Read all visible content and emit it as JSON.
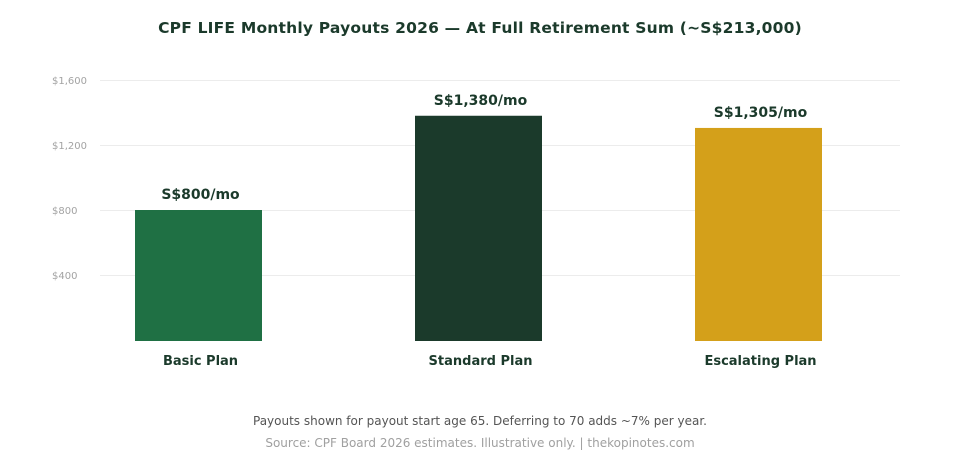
{
  "chart_data": {
    "type": "bar",
    "title": "CPF LIFE Monthly Payouts 2026 — At Full Retirement Sum (~S$213,000)",
    "categories": [
      "Basic Plan",
      "Standard Plan",
      "Escalating Plan"
    ],
    "values": [
      800,
      1380,
      1305
    ],
    "data_labels": [
      "S$800/mo",
      "S$1,380/mo",
      "S$1,305/mo"
    ],
    "colors": [
      "#1f7044",
      "#1b3a2b",
      "#d4a01a"
    ],
    "ylim": [
      0,
      1600
    ],
    "yticks": [
      400,
      800,
      1200,
      1600
    ],
    "ytick_labels": [
      "$400",
      "$800",
      "$1,200",
      "$1,600"
    ],
    "grid": true,
    "xlabel": "",
    "ylabel": ""
  },
  "footnote": "Payouts shown for payout start age 65. Deferring to 70 adds ~7% per year.",
  "source": "Source: CPF Board 2026 estimates. Illustrative only. | thekopinotes.com"
}
